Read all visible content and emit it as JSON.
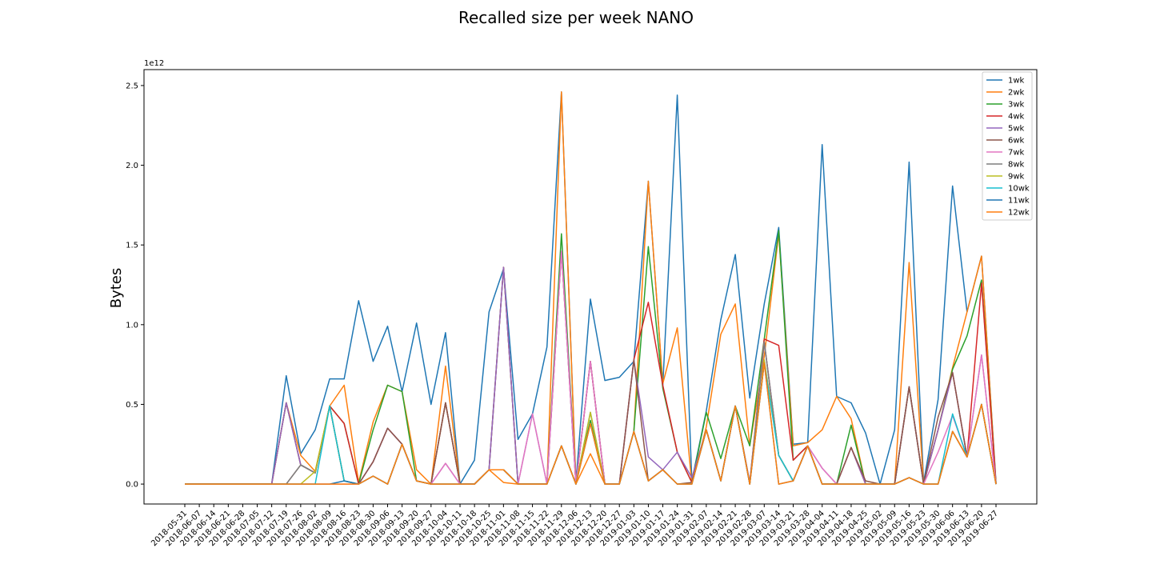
{
  "chart_data": {
    "type": "line",
    "title": "Recalled size per week NANO",
    "xlabel": "",
    "ylabel": "Bytes",
    "y_offset_text": "1e12",
    "ylim": [
      -0.125,
      2.6
    ],
    "yticks": [
      0.0,
      0.5,
      1.0,
      1.5,
      2.0,
      2.5
    ],
    "ytick_labels": [
      "0.0",
      "0.5",
      "1.0",
      "1.5",
      "2.0",
      "2.5"
    ],
    "grid": false,
    "legend_position": "upper right",
    "categories": [
      "2018-05-31",
      "2018-06-07",
      "2018-06-14",
      "2018-06-21",
      "2018-06-28",
      "2018-07-05",
      "2018-07-12",
      "2018-07-19",
      "2018-07-26",
      "2018-08-02",
      "2018-08-09",
      "2018-08-16",
      "2018-08-23",
      "2018-08-30",
      "2018-09-06",
      "2018-09-13",
      "2018-09-20",
      "2018-09-27",
      "2018-10-04",
      "2018-10-11",
      "2018-10-18",
      "2018-10-25",
      "2018-11-01",
      "2018-11-08",
      "2018-11-15",
      "2018-11-22",
      "2018-11-29",
      "2018-12-06",
      "2018-12-13",
      "2018-12-20",
      "2018-12-27",
      "2019-01-03",
      "2019-01-10",
      "2019-01-17",
      "2019-01-24",
      "2019-01-31",
      "2019-02-07",
      "2019-02-14",
      "2019-02-21",
      "2019-02-28",
      "2019-03-07",
      "2019-03-14",
      "2019-03-21",
      "2019-03-28",
      "2019-04-04",
      "2019-04-11",
      "2019-04-18",
      "2019-04-25",
      "2019-05-02",
      "2019-05-09",
      "2019-05-16",
      "2019-05-23",
      "2019-05-30",
      "2019-06-06",
      "2019-06-13",
      "2019-06-20",
      "2019-06-27"
    ],
    "series": [
      {
        "name": "1wk",
        "color": "#1f77b4",
        "values": [
          0,
          0,
          0,
          0,
          0,
          0,
          0,
          0.68,
          0.19,
          0.34,
          0.66,
          0.66,
          1.15,
          0.77,
          0.99,
          0.58,
          1.01,
          0.5,
          0.95,
          0,
          0.15,
          1.08,
          1.35,
          0.28,
          0.44,
          0.86,
          2.46,
          0.01,
          1.16,
          0.65,
          0.67,
          0.77,
          1.9,
          0.62,
          2.44,
          0.02,
          0.46,
          1.03,
          1.44,
          0.54,
          1.13,
          1.61,
          0.25,
          0.26,
          2.13,
          0.55,
          0.51,
          0.32,
          0,
          0.34,
          2.02,
          0.01,
          0.53,
          1.87,
          1.08,
          1.43,
          0.01
        ]
      },
      {
        "name": "2wk",
        "color": "#ff7f0e",
        "values": [
          0,
          0,
          0,
          0,
          0,
          0,
          0,
          0.51,
          0.18,
          0.08,
          0.49,
          0.62,
          0.01,
          0.39,
          0.62,
          0.58,
          0.09,
          0,
          0.74,
          0,
          0,
          0.09,
          0.01,
          0,
          0,
          0,
          2.46,
          0,
          0.19,
          0,
          0,
          0.33,
          1.9,
          0.63,
          0.98,
          0,
          0.36,
          0.94,
          1.13,
          0.24,
          0.8,
          1.57,
          0.24,
          0.26,
          0.34,
          0.55,
          0.41,
          0,
          0,
          0,
          1.39,
          0,
          0.34,
          0.73,
          1.08,
          1.43,
          0
        ]
      },
      {
        "name": "3wk",
        "color": "#2ca02c",
        "values": [
          0,
          0,
          0,
          0,
          0,
          0,
          0,
          0.51,
          0.12,
          0.07,
          0.49,
          0.38,
          0,
          0.34,
          0.62,
          0.58,
          0.02,
          0,
          0.51,
          0,
          0,
          0.09,
          1.36,
          0,
          0,
          0,
          1.57,
          0,
          0.4,
          0,
          0,
          0.33,
          1.49,
          0.6,
          0.2,
          0.01,
          0.45,
          0.16,
          0.49,
          0.24,
          0.91,
          1.59,
          0.15,
          0.24,
          0,
          0,
          0.37,
          0,
          0,
          0,
          0.61,
          0,
          0.34,
          0.72,
          0.93,
          1.28,
          0
        ]
      },
      {
        "name": "4wk",
        "color": "#d62728",
        "values": [
          0,
          0,
          0,
          0,
          0,
          0,
          0,
          0.51,
          0.12,
          0.07,
          0.49,
          0.38,
          0,
          0.14,
          0.35,
          0.25,
          0.02,
          0,
          0.51,
          0,
          0,
          0.09,
          1.36,
          0,
          0,
          0,
          1.46,
          0,
          0.77,
          0,
          0,
          0.78,
          1.14,
          0.62,
          0.2,
          0.01,
          0.34,
          0.02,
          0.49,
          0.01,
          0.91,
          0.87,
          0.15,
          0.24,
          0,
          0,
          0.23,
          0,
          0,
          0,
          0.61,
          0,
          0.34,
          0.7,
          0.17,
          1.26,
          0
        ]
      },
      {
        "name": "5wk",
        "color": "#9467bd",
        "values": [
          0,
          0,
          0,
          0,
          0,
          0,
          0,
          0.51,
          0.12,
          0.07,
          0.49,
          0.02,
          0,
          0.14,
          0.35,
          0.25,
          0.02,
          0,
          0.13,
          0,
          0,
          0.09,
          1.36,
          0,
          0.44,
          0,
          1.46,
          0,
          0.77,
          0,
          0,
          0.78,
          0.17,
          0.09,
          0.2,
          0.04,
          0.34,
          0.02,
          0.49,
          0.01,
          0.89,
          0.18,
          0.02,
          0.24,
          0.1,
          0,
          0.23,
          0,
          0,
          0,
          0.61,
          0,
          0.34,
          0.7,
          0.17,
          0.81,
          0
        ]
      },
      {
        "name": "6wk",
        "color": "#8c564b",
        "values": [
          0,
          0,
          0,
          0,
          0,
          0,
          0,
          0,
          0.12,
          0.07,
          0.49,
          0.02,
          0,
          0.14,
          0.35,
          0.25,
          0.02,
          0,
          0.51,
          0,
          0,
          0.09,
          0.09,
          0,
          0,
          0,
          0.24,
          0,
          0.77,
          0,
          0,
          0.78,
          0.02,
          0.09,
          0,
          0.01,
          0.34,
          0.02,
          0.49,
          0,
          0.89,
          0.18,
          0.02,
          0.24,
          0,
          0,
          0.23,
          0.02,
          0,
          0,
          0.61,
          0,
          0.42,
          0.7,
          0.17,
          0.5,
          0
        ]
      },
      {
        "name": "7wk",
        "color": "#e377c2",
        "values": [
          0,
          0,
          0,
          0,
          0,
          0,
          0,
          0,
          0,
          0,
          0,
          0,
          0,
          0.05,
          0,
          0.25,
          0.02,
          0,
          0.13,
          0,
          0,
          0.09,
          0.09,
          0,
          0.44,
          0,
          1.46,
          0,
          0.77,
          0,
          0,
          0.33,
          0.02,
          0.09,
          0,
          0,
          0.34,
          0.02,
          0.49,
          0,
          0.89,
          0.18,
          0.02,
          0.24,
          0.1,
          0,
          0,
          0,
          0,
          0,
          0.04,
          0,
          0.2,
          0.43,
          0.17,
          0.81,
          0
        ]
      },
      {
        "name": "8wk",
        "color": "#7f7f7f",
        "values": [
          0,
          0,
          0,
          0,
          0,
          0,
          0,
          0,
          0.12,
          0.07,
          0.49,
          0.02,
          0,
          0.05,
          0,
          0.25,
          0.02,
          0,
          0,
          0,
          0,
          0.09,
          0.09,
          0,
          0,
          0,
          0.24,
          0,
          0.45,
          0,
          0,
          0.33,
          0.02,
          0.09,
          0,
          0,
          0.34,
          0.02,
          0.49,
          0,
          0.89,
          0.18,
          0.02,
          0.24,
          0,
          0,
          0,
          0,
          0,
          0,
          0.04,
          0,
          0,
          0.33,
          0.17,
          0.5,
          0
        ]
      },
      {
        "name": "9wk",
        "color": "#bcbd22",
        "values": [
          0,
          0,
          0,
          0,
          0,
          0,
          0,
          0,
          0,
          0.08,
          0.49,
          0.02,
          0,
          0.05,
          0,
          0.25,
          0.02,
          0,
          0,
          0,
          0,
          0.09,
          0.09,
          0,
          0,
          0,
          0.24,
          0,
          0.45,
          0,
          0,
          0.33,
          0.02,
          0.09,
          0,
          0,
          0.34,
          0.02,
          0.49,
          0,
          0.78,
          0.18,
          0.02,
          0.24,
          0,
          0,
          0,
          0,
          0,
          0,
          0.04,
          0,
          0,
          0.33,
          0.17,
          0.5,
          0
        ]
      },
      {
        "name": "10wk",
        "color": "#17becf",
        "values": [
          0,
          0,
          0,
          0,
          0,
          0,
          0,
          0,
          0,
          0,
          0.49,
          0.02,
          0,
          0.05,
          0,
          0.25,
          0.02,
          0,
          0,
          0,
          0,
          0.09,
          0.09,
          0,
          0,
          0,
          0.24,
          0,
          0.38,
          0,
          0,
          0.33,
          0.02,
          0.09,
          0,
          0,
          0.34,
          0.02,
          0.49,
          0,
          0.76,
          0.18,
          0.02,
          0.24,
          0,
          0,
          0,
          0,
          0,
          0,
          0.04,
          0,
          0,
          0.44,
          0.17,
          0.5,
          0
        ]
      },
      {
        "name": "11wk",
        "color": "#1f77b4",
        "values": [
          0,
          0,
          0,
          0,
          0,
          0,
          0,
          0,
          0,
          0,
          0,
          0.02,
          0,
          0.05,
          0,
          0.25,
          0.02,
          0,
          0,
          0,
          0,
          0.09,
          0.09,
          0,
          0,
          0,
          0.24,
          0,
          0.38,
          0,
          0,
          0.33,
          0.02,
          0.09,
          0,
          0,
          0.34,
          0.02,
          0.49,
          0,
          0.76,
          0,
          0.02,
          0.24,
          0,
          0,
          0,
          0,
          0,
          0,
          0.04,
          0,
          0,
          0.33,
          0.17,
          0.5,
          0
        ]
      },
      {
        "name": "12wk",
        "color": "#ff7f0e",
        "values": [
          0,
          0,
          0,
          0,
          0,
          0,
          0,
          0,
          0,
          0,
          0,
          0,
          0,
          0.05,
          0,
          0.25,
          0.02,
          0,
          0,
          0,
          0,
          0.09,
          0.09,
          0,
          0,
          0,
          0.24,
          0,
          0.38,
          0,
          0,
          0.33,
          0.02,
          0.09,
          0,
          0,
          0.34,
          0.02,
          0.49,
          0,
          0.76,
          0,
          0.02,
          0.24,
          0,
          0,
          0,
          0,
          0,
          0,
          0.04,
          0,
          0,
          0.33,
          0.17,
          0.5,
          0
        ]
      }
    ]
  }
}
